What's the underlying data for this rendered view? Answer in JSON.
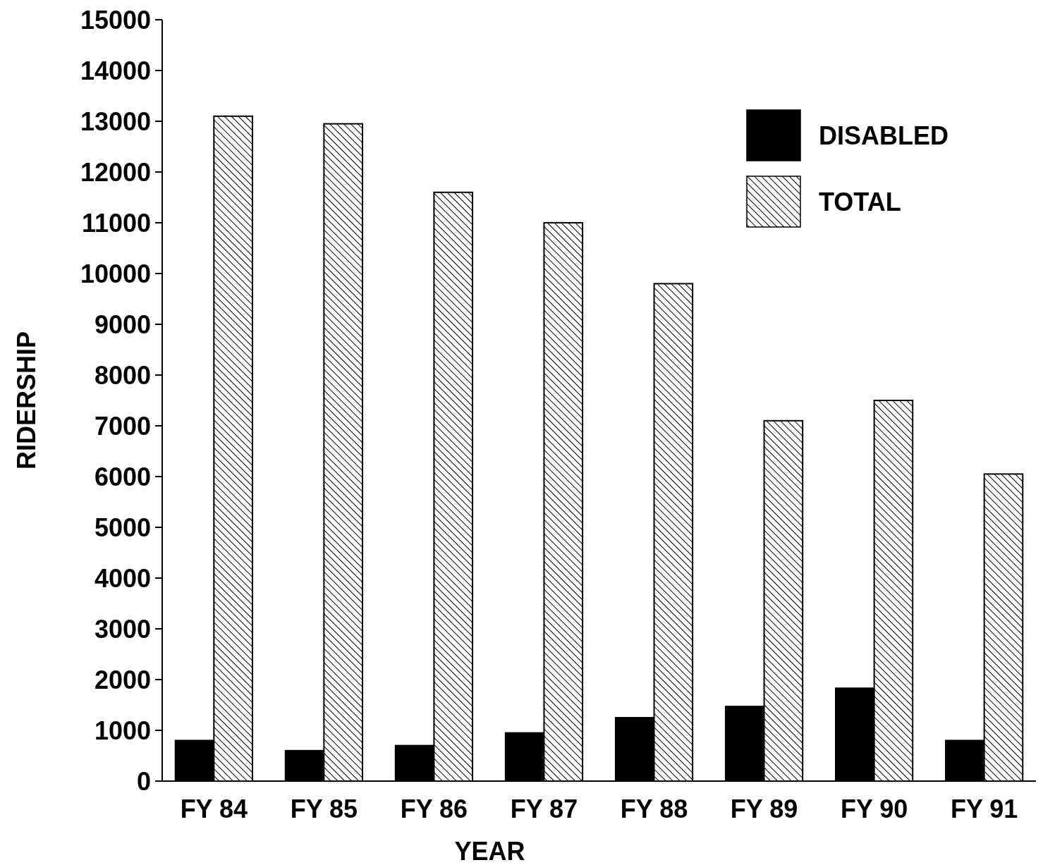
{
  "chart_data": {
    "type": "bar",
    "xlabel": "YEAR",
    "ylabel": "RIDERSHIP",
    "categories": [
      "FY 84",
      "FY 85",
      "FY 86",
      "FY 87",
      "FY 88",
      "FY 89",
      "FY 90",
      "FY 91"
    ],
    "series": [
      {
        "name": "DISABLED",
        "color": "#000000",
        "values": [
          800,
          600,
          700,
          950,
          1250,
          1470,
          1830,
          800
        ]
      },
      {
        "name": "TOTAL",
        "color": "#000000",
        "values": [
          13100,
          12950,
          11600,
          11000,
          9800,
          7100,
          7500,
          6050
        ]
      }
    ],
    "ylim": [
      0,
      15000
    ],
    "yticks": [
      0,
      1000,
      2000,
      3000,
      4000,
      5000,
      6000,
      7000,
      8000,
      9000,
      10000,
      11000,
      12000,
      13000,
      14000,
      15000
    ],
    "grid": false,
    "legend": "top right"
  }
}
